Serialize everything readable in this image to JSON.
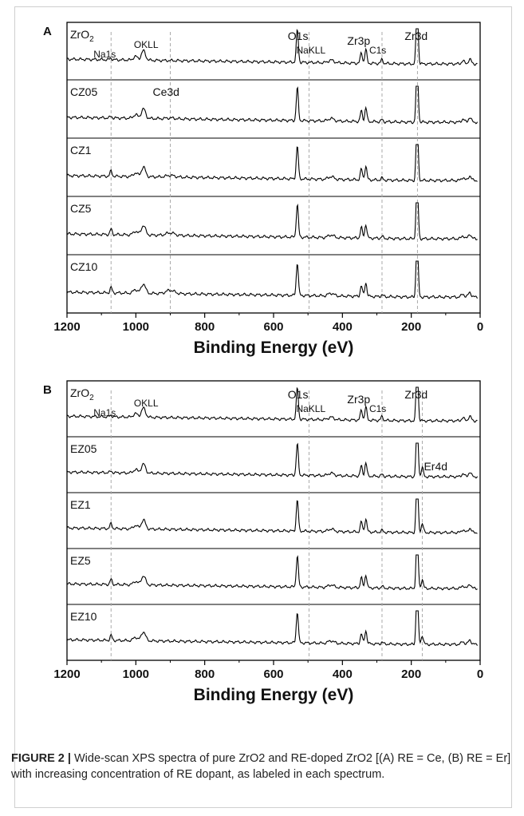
{
  "chart_data": [
    {
      "panel": "A",
      "type": "line",
      "xlabel": "Binding Energy (eV)",
      "xlim": [
        1200,
        0
      ],
      "xticks": [
        1200,
        1000,
        800,
        600,
        400,
        200,
        0
      ],
      "spectra": [
        "ZrO2",
        "CZ05",
        "CZ1",
        "CZ5",
        "CZ10"
      ],
      "peak_labels": [
        {
          "label": "Na1s",
          "energy": 1072
        },
        {
          "label": "OKLL",
          "energy": 978
        },
        {
          "label": "O1s",
          "energy": 531
        },
        {
          "label": "NaKLL",
          "energy": 497
        },
        {
          "label": "Zr3p",
          "energy": 335
        },
        {
          "label": "C1s",
          "energy": 285
        },
        {
          "label": "Zr3d",
          "energy": 182
        }
      ],
      "extra_labels": [
        {
          "label": "Ce3d",
          "energy": 900
        }
      ],
      "dashed_lines": [
        1072,
        900,
        497,
        285,
        182
      ]
    },
    {
      "panel": "B",
      "type": "line",
      "xlabel": "Binding Energy (eV)",
      "xlim": [
        1200,
        0
      ],
      "xticks": [
        1200,
        1000,
        800,
        600,
        400,
        200,
        0
      ],
      "spectra": [
        "ZrO2",
        "EZ05",
        "EZ1",
        "EZ5",
        "EZ10"
      ],
      "peak_labels": [
        {
          "label": "Na1s",
          "energy": 1072
        },
        {
          "label": "OKLL",
          "energy": 978
        },
        {
          "label": "O1s",
          "energy": 531
        },
        {
          "label": "NaKLL",
          "energy": 497
        },
        {
          "label": "Zr3p",
          "energy": 335
        },
        {
          "label": "C1s",
          "energy": 285
        },
        {
          "label": "Zr3d",
          "energy": 182
        }
      ],
      "extra_labels": [
        {
          "label": "Er4d",
          "energy": 168
        }
      ],
      "dashed_lines": [
        1072,
        497,
        285,
        168
      ]
    }
  ],
  "caption": {
    "prefix": "FIGURE 2 |",
    "text": "Wide-scan XPS spectra of pure ZrO2 and RE-doped ZrO2 [(A) RE = Ce, (B) RE = Er] with increasing concentration of RE dopant, as labeled in each spectrum."
  }
}
